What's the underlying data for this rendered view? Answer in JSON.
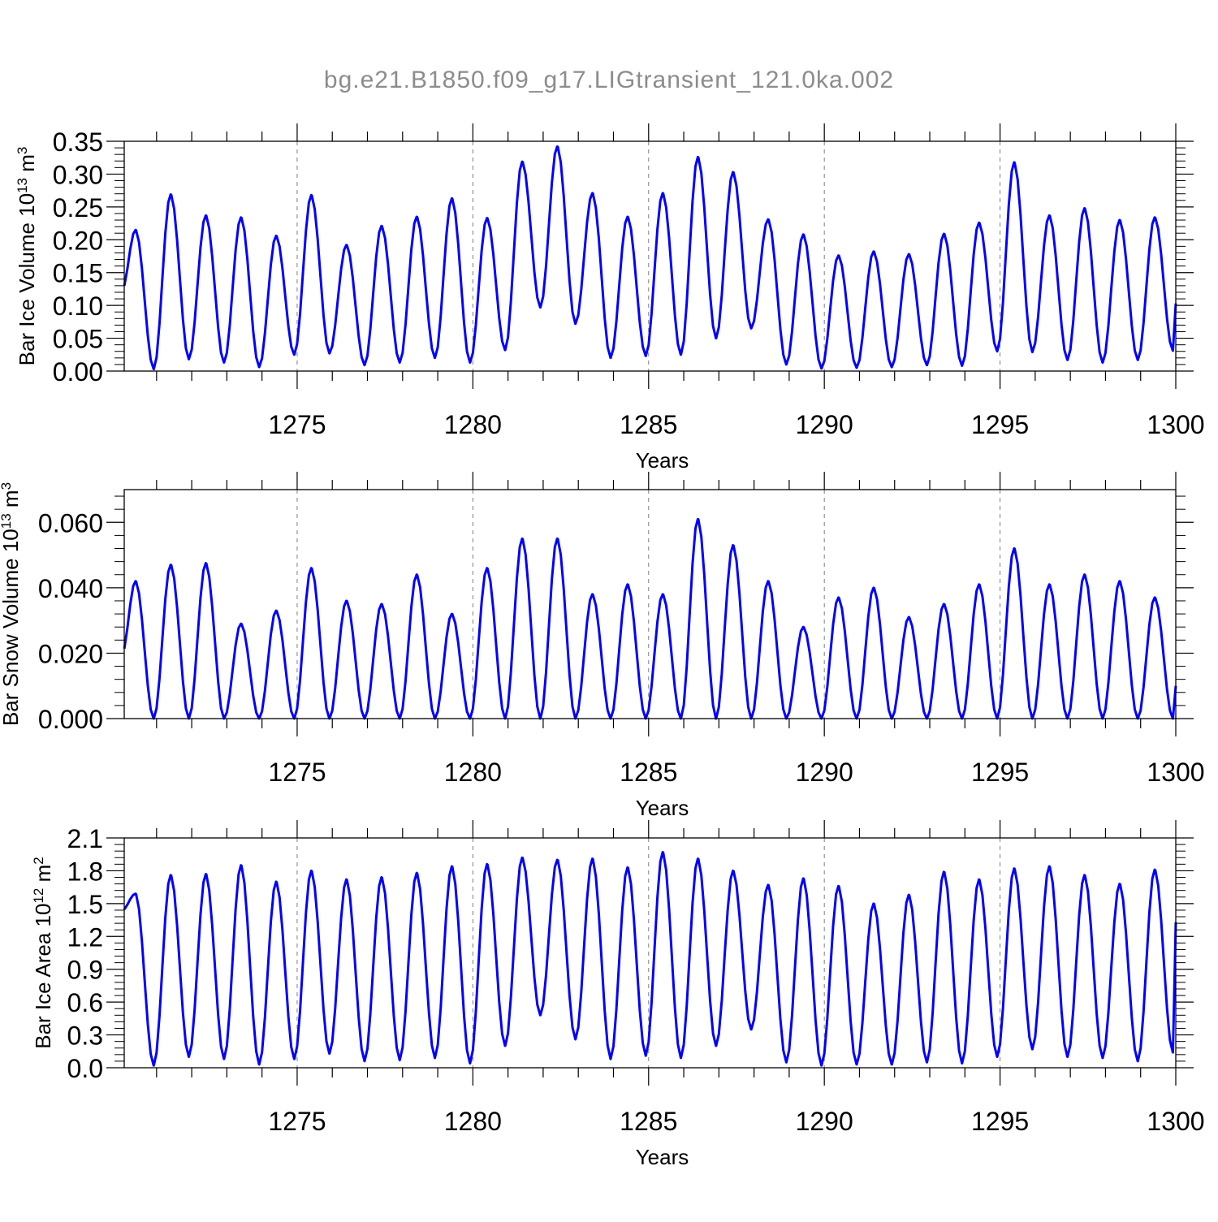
{
  "figure": {
    "title": "bg.e21.B1850.f09_g17.LIGtransient_121.0ka.002",
    "colors": {
      "series": "#0000ff",
      "axis": "#000000",
      "title": "#8c8c8c",
      "grid": "#7f7f7f"
    }
  },
  "chart_data": [
    {
      "type": "line",
      "ylabel": "Bar Ice Volume 10",
      "ylabel_exp": "13",
      "ylabel_unit": " m",
      "ylabel_unit_exp": "3",
      "xlabel": "Years",
      "xlim": [
        1270.08,
        1300.0
      ],
      "ylim": [
        0.0,
        0.35
      ],
      "x_ticks": [
        1275,
        1280,
        1285,
        1290,
        1295,
        1300
      ],
      "x_tick_labels": [
        "1275",
        "1280",
        "1285",
        "1290",
        "1295",
        "1300"
      ],
      "y_ticks": [
        0.0,
        0.05,
        0.1,
        0.15,
        0.2,
        0.25,
        0.3,
        0.35
      ],
      "y_tick_labels": [
        "0.00",
        "0.05",
        "0.10",
        "0.15",
        "0.20",
        "0.25",
        "0.30",
        "0.35"
      ],
      "grid": "vertical dashed at major x ticks",
      "series": [
        {
          "peaks": [
            0.215,
            0.269,
            0.237,
            0.234,
            0.206,
            0.268,
            0.192,
            0.221,
            0.235,
            0.263,
            0.233,
            0.319,
            0.342,
            0.271,
            0.235,
            0.271,
            0.326,
            0.303,
            0.231,
            0.208,
            0.176,
            0.182,
            0.178,
            0.209,
            0.226,
            0.318,
            0.237,
            0.248,
            0.23,
            0.234
          ],
          "troughs": [
            0.12,
            0.003,
            0.018,
            0.013,
            0.006,
            0.025,
            0.027,
            0.009,
            0.013,
            0.02,
            0.013,
            0.032,
            0.097,
            0.072,
            0.02,
            0.023,
            0.025,
            0.05,
            0.065,
            0.01,
            0.004,
            0.005,
            0.006,
            0.009,
            0.008,
            0.03,
            0.029,
            0.017,
            0.013,
            0.017,
            0.031
          ],
          "end_value": 0.103
        }
      ]
    },
    {
      "type": "line",
      "ylabel": "Bar Snow Volume 10",
      "ylabel_exp": "13",
      "ylabel_unit": " m",
      "ylabel_unit_exp": "3",
      "xlabel": "Years",
      "xlim": [
        1270.08,
        1300.0
      ],
      "ylim": [
        0.0,
        0.07
      ],
      "x_ticks": [
        1275,
        1280,
        1285,
        1290,
        1295,
        1300
      ],
      "x_tick_labels": [
        "1275",
        "1280",
        "1285",
        "1290",
        "1295",
        "1300"
      ],
      "y_ticks": [
        0.0,
        0.02,
        0.04,
        0.06
      ],
      "y_tick_labels": [
        "0.000",
        "0.020",
        "0.040",
        "0.060"
      ],
      "grid": "vertical dashed at major x ticks",
      "series": [
        {
          "peaks": [
            0.042,
            0.047,
            0.0475,
            0.029,
            0.033,
            0.046,
            0.036,
            0.035,
            0.044,
            0.032,
            0.046,
            0.055,
            0.055,
            0.038,
            0.041,
            0.038,
            0.061,
            0.053,
            0.042,
            0.028,
            0.037,
            0.04,
            0.031,
            0.035,
            0.041,
            0.052,
            0.041,
            0.044,
            0.042,
            0.037
          ],
          "troughs": [
            0.019,
            0.0,
            0.0,
            0.0,
            0.0,
            0.0,
            0.0,
            0.0,
            0.0,
            0.0,
            0.0,
            0.0,
            0.0,
            0.0,
            0.0,
            0.0,
            0.0,
            0.0,
            0.0,
            0.0,
            0.0,
            0.0,
            0.0,
            0.0,
            0.0,
            0.0,
            0.0,
            0.0,
            0.0,
            0.0,
            0.0
          ],
          "end_value": 0.01
        }
      ]
    },
    {
      "type": "line",
      "ylabel": "Bar Ice Area 10",
      "ylabel_exp": "12",
      "ylabel_unit": " m",
      "ylabel_unit_exp": "2",
      "xlabel": "Years",
      "xlim": [
        1270.08,
        1300.0
      ],
      "ylim": [
        0.0,
        2.1
      ],
      "x_ticks": [
        1275,
        1280,
        1285,
        1290,
        1295,
        1300
      ],
      "x_tick_labels": [
        "1275",
        "1280",
        "1285",
        "1290",
        "1295",
        "1300"
      ],
      "y_ticks": [
        0.0,
        0.3,
        0.6,
        0.9,
        1.2,
        1.5,
        1.8,
        2.1
      ],
      "y_tick_labels": [
        "0.0",
        "0.3",
        "0.6",
        "0.9",
        "1.2",
        "1.5",
        "1.8",
        "2.1"
      ],
      "grid": "vertical dashed at major x ticks",
      "series": [
        {
          "peaks": [
            1.59,
            1.76,
            1.77,
            1.85,
            1.7,
            1.8,
            1.72,
            1.74,
            1.78,
            1.84,
            1.86,
            1.92,
            1.9,
            1.91,
            1.83,
            1.97,
            1.91,
            1.8,
            1.67,
            1.73,
            1.66,
            1.5,
            1.58,
            1.79,
            1.72,
            1.82,
            1.84,
            1.76,
            1.68,
            1.81
          ],
          "troughs": [
            1.43,
            0.02,
            0.1,
            0.08,
            0.03,
            0.08,
            0.13,
            0.06,
            0.07,
            0.09,
            0.04,
            0.2,
            0.48,
            0.26,
            0.08,
            0.11,
            0.09,
            0.2,
            0.35,
            0.05,
            0.02,
            0.03,
            0.03,
            0.05,
            0.04,
            0.1,
            0.17,
            0.1,
            0.09,
            0.06,
            0.14
          ],
          "end_value": 1.33
        }
      ]
    }
  ]
}
